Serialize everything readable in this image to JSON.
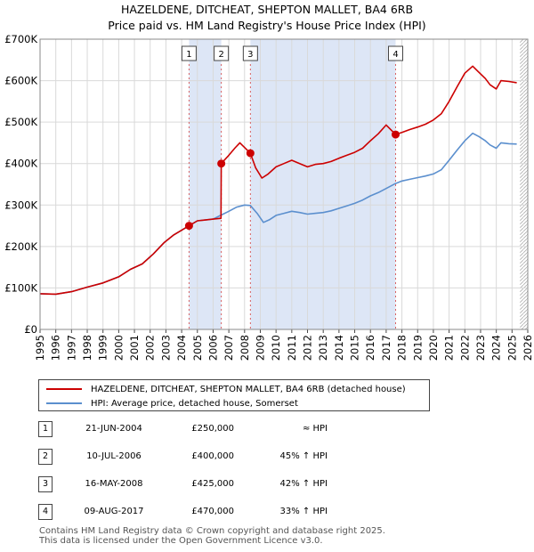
{
  "chart_data": {
    "type": "line",
    "title": "HAZELDENE, DITCHEAT, SHEPTON MALLET, BA4 6RB",
    "subtitle": "Price paid vs. HM Land Registry's House Price Index (HPI)",
    "xlim": [
      1995,
      2026
    ],
    "ylim": [
      0,
      700000
    ],
    "yticks": [
      0,
      100000,
      200000,
      300000,
      400000,
      500000,
      600000,
      700000
    ],
    "ytick_labels": [
      "£0",
      "£100K",
      "£200K",
      "£300K",
      "£400K",
      "£500K",
      "£600K",
      "£700K"
    ],
    "xticks": [
      "1995",
      "1996",
      "1997",
      "1998",
      "1999",
      "2000",
      "2001",
      "2002",
      "2003",
      "2004",
      "2005",
      "2006",
      "2007",
      "2008",
      "2009",
      "2010",
      "2011",
      "2012",
      "2013",
      "2014",
      "2015",
      "2016",
      "2017",
      "2018",
      "2019",
      "2020",
      "2021",
      "2022",
      "2023",
      "2024",
      "2025",
      "2026"
    ],
    "future_hatch_from": 2025.5,
    "series": [
      {
        "name": "HAZELDENE, DITCHEAT, SHEPTON MALLET, BA4 6RB (detached house)",
        "color": "#cc0000",
        "points": [
          [
            1995.0,
            86000
          ],
          [
            1996.0,
            85000
          ],
          [
            1997.0,
            91000
          ],
          [
            1998.0,
            102000
          ],
          [
            1999.0,
            112000
          ],
          [
            2000.0,
            127000
          ],
          [
            2000.75,
            145000
          ],
          [
            2001.5,
            158000
          ],
          [
            2002.2,
            182000
          ],
          [
            2002.9,
            210000
          ],
          [
            2003.5,
            228000
          ],
          [
            2004.47,
            250000
          ],
          [
            2005.0,
            262000
          ],
          [
            2005.5,
            264000
          ],
          [
            2006.0,
            266000
          ],
          [
            2006.5,
            268000
          ],
          [
            2006.52,
            400000
          ],
          [
            2007.0,
            420000
          ],
          [
            2007.4,
            438000
          ],
          [
            2007.7,
            450000
          ],
          [
            2008.37,
            425000
          ],
          [
            2008.7,
            390000
          ],
          [
            2009.1,
            365000
          ],
          [
            2009.5,
            375000
          ],
          [
            2010.0,
            392000
          ],
          [
            2010.5,
            400000
          ],
          [
            2011.0,
            408000
          ],
          [
            2011.5,
            400000
          ],
          [
            2012.0,
            392000
          ],
          [
            2012.5,
            398000
          ],
          [
            2013.0,
            400000
          ],
          [
            2013.5,
            405000
          ],
          [
            2014.0,
            413000
          ],
          [
            2014.5,
            420000
          ],
          [
            2015.0,
            427000
          ],
          [
            2015.5,
            437000
          ],
          [
            2016.0,
            455000
          ],
          [
            2016.5,
            472000
          ],
          [
            2017.0,
            493000
          ],
          [
            2017.6,
            470000
          ],
          [
            2018.0,
            475000
          ],
          [
            2018.5,
            482000
          ],
          [
            2019.0,
            488000
          ],
          [
            2019.5,
            495000
          ],
          [
            2020.0,
            505000
          ],
          [
            2020.5,
            520000
          ],
          [
            2021.0,
            550000
          ],
          [
            2021.5,
            585000
          ],
          [
            2022.0,
            618000
          ],
          [
            2022.5,
            635000
          ],
          [
            2022.9,
            620000
          ],
          [
            2023.3,
            605000
          ],
          [
            2023.6,
            590000
          ],
          [
            2024.0,
            580000
          ],
          [
            2024.3,
            600000
          ],
          [
            2024.8,
            598000
          ],
          [
            2025.3,
            595000
          ]
        ]
      },
      {
        "name": "HPI: Average price, detached house, Somerset",
        "color": "#5b8fce",
        "points": [
          [
            1995.0,
            86000
          ],
          [
            1996.0,
            85000
          ],
          [
            1997.0,
            91000
          ],
          [
            1998.0,
            102000
          ],
          [
            1999.0,
            112000
          ],
          [
            2000.0,
            127000
          ],
          [
            2000.75,
            145000
          ],
          [
            2001.5,
            158000
          ],
          [
            2002.2,
            182000
          ],
          [
            2002.9,
            210000
          ],
          [
            2003.5,
            228000
          ],
          [
            2004.47,
            250000
          ],
          [
            2005.0,
            262000
          ],
          [
            2005.5,
            264000
          ],
          [
            2006.0,
            266000
          ],
          [
            2006.52,
            276000
          ],
          [
            2007.0,
            285000
          ],
          [
            2007.5,
            295000
          ],
          [
            2008.0,
            300000
          ],
          [
            2008.37,
            299000
          ],
          [
            2008.8,
            280000
          ],
          [
            2009.2,
            258000
          ],
          [
            2009.6,
            265000
          ],
          [
            2010.0,
            275000
          ],
          [
            2010.5,
            280000
          ],
          [
            2011.0,
            285000
          ],
          [
            2011.5,
            282000
          ],
          [
            2012.0,
            278000
          ],
          [
            2012.5,
            280000
          ],
          [
            2013.0,
            282000
          ],
          [
            2013.5,
            286000
          ],
          [
            2014.0,
            292000
          ],
          [
            2014.5,
            298000
          ],
          [
            2015.0,
            304000
          ],
          [
            2015.5,
            312000
          ],
          [
            2016.0,
            322000
          ],
          [
            2016.5,
            330000
          ],
          [
            2017.0,
            340000
          ],
          [
            2017.6,
            352000
          ],
          [
            2018.0,
            358000
          ],
          [
            2018.5,
            362000
          ],
          [
            2019.0,
            366000
          ],
          [
            2019.5,
            370000
          ],
          [
            2020.0,
            375000
          ],
          [
            2020.5,
            385000
          ],
          [
            2021.0,
            408000
          ],
          [
            2021.5,
            432000
          ],
          [
            2022.0,
            455000
          ],
          [
            2022.5,
            473000
          ],
          [
            2022.9,
            465000
          ],
          [
            2023.3,
            455000
          ],
          [
            2023.6,
            445000
          ],
          [
            2024.0,
            437000
          ],
          [
            2024.3,
            450000
          ],
          [
            2024.8,
            448000
          ],
          [
            2025.3,
            447000
          ]
        ]
      }
    ],
    "sales": [
      {
        "label": "1",
        "x": 2004.47,
        "y": 250000,
        "date": "21-JUN-2004",
        "price": "£250,000",
        "hpi": "≈ HPI"
      },
      {
        "label": "2",
        "x": 2006.52,
        "y": 400000,
        "date": "10-JUL-2006",
        "price": "£400,000",
        "hpi": "45% ↑ HPI"
      },
      {
        "label": "3",
        "x": 2008.37,
        "y": 425000,
        "date": "16-MAY-2008",
        "price": "£425,000",
        "hpi": "42% ↑ HPI"
      },
      {
        "label": "4",
        "x": 2017.6,
        "y": 470000,
        "date": "09-AUG-2017",
        "price": "£470,000",
        "hpi": "33% ↑ HPI"
      }
    ],
    "shaded_ranges": [
      [
        2004.47,
        2006.52
      ],
      [
        2008.37,
        2017.6
      ]
    ]
  },
  "legend": {
    "items": [
      {
        "label": "HAZELDENE, DITCHEAT, SHEPTON MALLET, BA4 6RB (detached house)",
        "color": "#cc0000"
      },
      {
        "label": "HPI: Average price, detached house, Somerset",
        "color": "#5b8fce"
      }
    ]
  },
  "footer": {
    "line1": "Contains HM Land Registry data © Crown copyright and database right 2025.",
    "line2": "This data is licensed under the Open Government Licence v3.0."
  }
}
